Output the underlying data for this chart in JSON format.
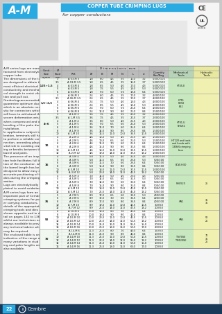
{
  "title": "COPPER TUBE CRIMPING LUGS",
  "subtitle": "for copper conductors",
  "brand": "A-M",
  "page_number": "22",
  "footer_brand": "Cembre",
  "left_text": [
    "A-M series lugs are manu-",
    "factured from electrolytic",
    "copper tube.",
    "The dimensions of the tube",
    "are designed to obtain the",
    "most efficient electrical",
    "conductivity and mechani-",
    "cal strength to resist vibra-",
    "tion and pull out.",
    "Cembrelugsareannealedto",
    "guarantee optimum ductility",
    "which is an absolute neces-",
    "sity for connectors which",
    "will have to withstand the",
    "severe deformation arising",
    "when compressed and any",
    "bending of the palm during",
    "installation.",
    "In applications subject to vi-",
    "bration, terminals still have",
    "to perform a reliable con-",
    "nection, annealing plays a",
    "vital role in avoiding crack-",
    "ing or breaks between the",
    "barrel and palm.",
    "The presence of an inspec-",
    "tion hole facilitates full inser-",
    "tion of the conductor, whilst",
    "the barrel length has been",
    "designed to allow easy and",
    "accurate positioning of the",
    "dies during the crimping op-",
    "eration.",
    "Lugs are electrolytically tin-",
    "plated to avoid oxidation.",
    "A-M series lugs form an",
    "important part of Cembre",
    "crimping systems for pow-",
    "er carrying conductors,",
    "details of the appropriate",
    "crimping tools and dies are",
    "shown opposite and in de-",
    "tail on pages 132 to 136,",
    "whilst our technicians are",
    "always available to provide",
    "any technical advice which",
    "may be required.",
    "The enclosed table is only",
    "indicative of the range and",
    "many variations in stud fix-",
    "ing and palm lengths are",
    "also available."
  ],
  "cond_groups": [
    {
      "cond": "0,25÷1,5",
      "rows": [
        {
          "stud": "3",
          "ref": "A 03-M 3",
          "oi": "1,8",
          "B": "6,0",
          "M": "4,5",
          "N": "3,5",
          "L": "16,0",
          "d": "3,2",
          "qty": "5.000/100"
        },
        {
          "stud": "3,5",
          "ref": "A 03-M 3,5",
          "oi": "1,8",
          "B": "6,5",
          "M": "4,5",
          "N": "3,5",
          "L": "16,0",
          "d": "3,7",
          "qty": "5.000/100"
        },
        {
          "stud": "4",
          "ref": "A 03-M 4",
          "oi": "1,8",
          "B": "6,5",
          "M": "5,0",
          "N": "4,0",
          "L": "17,0",
          "d": "4,3",
          "qty": "5.000/100"
        },
        {
          "stud": "5",
          "ref": "A 03-M 5",
          "oi": "1,8",
          "B": "7,5",
          "M": "5,5",
          "N": "4,5",
          "L": "18,0",
          "d": "5,3",
          "qty": "5.000/100"
        },
        {
          "stud": "6",
          "ref": "A 03-M 6",
          "oi": "1,8",
          "B": "9,0",
          "M": "6,0",
          "N": "5,0",
          "L": "19,0",
          "d": "6,4",
          "qty": "5.000/100"
        }
      ]
    },
    {
      "cond": "1,5÷2,5",
      "rows": [
        {
          "stud": "3",
          "ref": "A 06-M 3",
          "oi": "2,4",
          "B": "6,0",
          "M": "4,5",
          "N": "3,5",
          "L": "17,0",
          "d": "3,2",
          "qty": "4.000/100"
        },
        {
          "stud": "3,5",
          "ref": "A 06-M 3,5",
          "oi": "2,4",
          "B": "6,5",
          "M": "4,5",
          "N": "3,5",
          "L": "17,0",
          "d": "3,7",
          "qty": "4.000/100"
        },
        {
          "stud": "4",
          "ref": "A 06-M 4",
          "oi": "2,4",
          "B": "7,5",
          "M": "5,0",
          "N": "4,0",
          "L": "18,0",
          "d": "4,3",
          "qty": "4.000/100"
        },
        {
          "stud": "5",
          "ref": "A 06-M 5",
          "oi": "2,4",
          "B": "8,5",
          "M": "5,5",
          "N": "4,5",
          "L": "19,0",
          "d": "5,3",
          "qty": "4.000/100"
        },
        {
          "stud": "6",
          "ref": "A 06-M 6",
          "oi": "2,4",
          "B": "9,0",
          "M": "6,0",
          "N": "5,0",
          "L": "20,0",
          "d": "6,4",
          "qty": "4.000/100"
        },
        {
          "stud": "8",
          "ref": "A 06-M 8",
          "oi": "2,4",
          "B": "12,0",
          "M": "9,0",
          "N": "8,0",
          "L": "26,0",
          "d": "8,4",
          "qty": "2.500/100"
        }
      ]
    },
    {
      "cond": "4÷6",
      "rows": [
        {
          "stud": "3",
          "ref": "A 1-M 3",
          "oi": "3,6",
          "B": "7,5",
          "M": "4,5",
          "N": "3,5",
          "L": "20,5",
          "d": "3,2",
          "qty": "2.000/100"
        },
        {
          "stud": "3,5",
          "ref": "A 1-M 3,5",
          "oi": "3,6",
          "B": "7,5",
          "M": "4,5",
          "N": "3,5",
          "L": "20,5",
          "d": "3,7",
          "qty": "2.000/100"
        },
        {
          "stud": "4",
          "ref": "A 1-M 4",
          "oi": "3,6",
          "B": "8,0",
          "M": "5,0",
          "N": "4,0",
          "L": "21,5",
          "d": "4,3",
          "qty": "2.000/100"
        },
        {
          "stud": "5",
          "ref": "A 1-M 5",
          "oi": "3,6",
          "B": "9,0",
          "M": "6,5",
          "N": "6,0",
          "L": "25,0",
          "d": "5,3",
          "qty": "2.000/100"
        },
        {
          "stud": "6",
          "ref": "A 1-M 6",
          "oi": "3,6",
          "B": "11,0",
          "M": "7,0",
          "N": "6,0",
          "L": "25,5",
          "d": "6,4",
          "qty": "2.000/100"
        },
        {
          "stud": "8",
          "ref": "A 1-M 8",
          "oi": "3,6",
          "B": "14,0",
          "M": "9,0",
          "N": "8,0",
          "L": "29,5",
          "d": "8,4",
          "qty": "1.500/100"
        },
        {
          "stud": "10",
          "ref": "A 1-M 10",
          "oi": "3,6",
          "B": "16,5",
          "M": "11,0",
          "N": "10,0",
          "L": "33,5",
          "d": "10,5",
          "qty": "1.000/100"
        }
      ]
    },
    {
      "cond": "10",
      "rows": [
        {
          "stud": "4",
          "ref": "A 2-M 4",
          "oi": "4,6",
          "B": "10,0",
          "M": "5,0",
          "N": "4,0",
          "L": "22,5",
          "d": "4,3",
          "qty": "1.500/100"
        },
        {
          "stud": "5",
          "ref": "A 2-M 5",
          "oi": "4,6",
          "B": "10,0",
          "M": "6,5",
          "N": "6,0",
          "L": "26,0",
          "d": "5,3",
          "qty": "1.500/100"
        },
        {
          "stud": "6",
          "ref": "A 2-M 6",
          "oi": "4,6",
          "B": "11,0",
          "M": "7,0",
          "N": "6,0",
          "L": "26,5",
          "d": "6,4",
          "qty": "1.500/100"
        },
        {
          "stud": "8",
          "ref": "A 2-M 8",
          "oi": "4,6",
          "B": "15,0",
          "M": "9,0",
          "N": "8,0",
          "L": "30,5",
          "d": "8,4",
          "qty": "1.000/100"
        },
        {
          "stud": "10",
          "ref": "A 2-M 10",
          "oi": "4,6",
          "B": "18,0",
          "M": "11,0",
          "N": "10,0",
          "L": "34,5",
          "d": "10,5",
          "qty": "1.000/100"
        },
        {
          "stud": "12",
          "ref": "A 2-M 12",
          "oi": "4,6",
          "B": "19,0",
          "M": "14,0",
          "N": "12,0",
          "L": "39,5",
          "d": "13,2",
          "qty": "1.000/100"
        }
      ]
    },
    {
      "cond": "16",
      "rows": [
        {
          "stud": "4",
          "ref": "A 3-M 4",
          "oi": "5,8",
          "B": "11,5",
          "M": "5,0",
          "N": "4,0",
          "L": "25,5",
          "d": "4,3",
          "qty": "1.000/100"
        },
        {
          "stud": "5",
          "ref": "A 3-M 5",
          "oi": "5,8",
          "B": "11,5",
          "M": "6,5",
          "N": "6,0",
          "L": "29,0",
          "d": "5,3",
          "qty": "500/100"
        },
        {
          "stud": "6",
          "ref": "A 3-M 6",
          "oi": "5,8",
          "B": "11,5",
          "M": "7,0",
          "N": "6,0",
          "L": "29,5",
          "d": "6,4",
          "qty": "500/100"
        },
        {
          "stud": "8",
          "ref": "A 3-M 8",
          "oi": "5,8",
          "B": "15,0",
          "M": "9,0",
          "N": "8,0",
          "L": "33,5",
          "d": "8,4",
          "qty": "500/100"
        },
        {
          "stud": "10",
          "ref": "A 3-M 10",
          "oi": "5,8",
          "B": "18,0",
          "M": "11,0",
          "N": "10,0",
          "L": "37,5",
          "d": "10,5",
          "qty": "1.000/100"
        },
        {
          "stud": "12",
          "ref": "A 3-M 12",
          "oi": "5,8",
          "B": "20,0",
          "M": "14,0",
          "N": "12,0",
          "L": "42,5",
          "d": "13,2",
          "qty": "500/100"
        }
      ]
    },
    {
      "cond": "25",
      "rows": [
        {
          "stud": "4",
          "ref": "A 5-M 4",
          "oi": "7,0",
          "B": "14,0",
          "M": "5,0",
          "N": "4,0",
          "L": "28,0",
          "d": "4,3",
          "qty": "500/100"
        },
        {
          "stud": "5",
          "ref": "A 5-M 5",
          "oi": "7,0",
          "B": "14,0",
          "M": "6,5",
          "N": "6,0",
          "L": "31,5",
          "d": "5,3",
          "qty": "500/100"
        },
        {
          "stud": "6",
          "ref": "A 5-M 6",
          "oi": "7,0",
          "B": "14,0",
          "M": "7,0",
          "N": "6,0",
          "L": "32,0",
          "d": "6,4",
          "qty": "500/100"
        },
        {
          "stud": "8",
          "ref": "A 5-M 8",
          "oi": "7,0",
          "B": "15,0",
          "M": "9,0",
          "N": "8,0",
          "L": "36,0",
          "d": "8,4",
          "qty": "500/100"
        },
        {
          "stud": "10",
          "ref": "A 5-M 10",
          "oi": "7,0",
          "B": "18,0",
          "M": "11,0",
          "N": "10,0",
          "L": "40,0",
          "d": "10,5",
          "qty": "500/100"
        },
        {
          "stud": "12",
          "ref": "A 5-M 12",
          "oi": "7,0",
          "B": "21,0",
          "M": "14,0",
          "N": "12,0",
          "L": "45,0",
          "d": "13,2",
          "qty": "500/100"
        }
      ]
    },
    {
      "cond": "35",
      "rows": [
        {
          "stud": "5",
          "ref": "A 7-M 5",
          "oi": "8,9",
          "B": "17,0",
          "M": "6,5",
          "N": "6,0",
          "L": "34,0",
          "d": "5,3",
          "qty": "400/100"
        },
        {
          "stud": "6",
          "ref": "A 7-M 6",
          "oi": "8,9",
          "B": "17,0",
          "M": "7,0",
          "N": "6,0",
          "L": "34,5",
          "d": "6,4",
          "qty": "400/100"
        },
        {
          "stud": "8",
          "ref": "A 7-M 8",
          "oi": "8,9",
          "B": "17,0",
          "M": "9,0",
          "N": "8,0",
          "L": "38,5",
          "d": "8,4",
          "qty": "400/100"
        },
        {
          "stud": "10",
          "ref": "A 7-M 10",
          "oi": "8,9",
          "B": "19,0",
          "M": "11,0",
          "N": "10,0",
          "L": "42,5",
          "d": "10,5",
          "qty": "300/50"
        },
        {
          "stud": "12",
          "ref": "A 7-M 12",
          "oi": "8,9",
          "B": "21,0",
          "M": "14,0",
          "N": "12,0",
          "L": "47,5",
          "d": "13,2",
          "qty": "200/50"
        }
      ]
    },
    {
      "cond": "50",
      "rows": [
        {
          "stud": "6",
          "ref": "A 10-M 6",
          "oi": "10,0",
          "B": "19,0",
          "M": "8,0",
          "N": "7,0",
          "L": "40,5",
          "d": "6,4",
          "qty": "200/50"
        },
        {
          "stud": "8",
          "ref": "A 10-M 8",
          "oi": "10,0",
          "B": "19,0",
          "M": "9,0",
          "N": "8,0",
          "L": "42,5",
          "d": "8,4",
          "qty": "200/50"
        },
        {
          "stud": "10",
          "ref": "A 10-M 10",
          "oi": "10,0",
          "B": "20,0",
          "M": "11,0",
          "N": "10,0",
          "L": "46,5",
          "d": "10,5",
          "qty": "200/50"
        },
        {
          "stud": "12",
          "ref": "A 10-M 12",
          "oi": "10,0",
          "B": "21,0",
          "M": "14,0",
          "N": "12,0",
          "L": "51,5",
          "d": "13,2",
          "qty": "200/50"
        },
        {
          "stud": "14",
          "ref": "A 10-M 14",
          "oi": "10,0",
          "B": "25,0",
          "M": "16,0",
          "N": "14,0",
          "L": "55,5",
          "d": "15,0",
          "qty": "200/50"
        },
        {
          "stud": "16",
          "ref": "A 10-M 16",
          "oi": "10,0",
          "B": "26,0",
          "M": "18,0",
          "N": "16,0",
          "L": "59,5",
          "d": "17,0",
          "qty": "200/50"
        }
      ]
    },
    {
      "cond": "70",
      "rows": [
        {
          "stud": "6",
          "ref": "A 14-M 6",
          "oi": "11,3",
          "B": "21,0",
          "M": "8,0",
          "N": "7,0",
          "L": "44,0",
          "d": "6,4",
          "qty": "150/50"
        },
        {
          "stud": "8",
          "ref": "A 14-M 8",
          "oi": "11,3",
          "B": "21,0",
          "M": "9,0",
          "N": "8,0",
          "L": "46,0",
          "d": "8,4",
          "qty": "100/50"
        },
        {
          "stud": "10",
          "ref": "A 14-M 10",
          "oi": "11,3",
          "B": "21,0",
          "M": "11,0",
          "N": "10,0",
          "L": "50,0",
          "d": "10,5",
          "qty": "100/50"
        },
        {
          "stud": "12",
          "ref": "A 14-M 12",
          "oi": "11,3",
          "B": "22,0",
          "M": "14,0",
          "N": "12,0",
          "L": "55,0",
          "d": "13,2",
          "qty": "100/50"
        },
        {
          "stud": "14",
          "ref": "A 14-M 14",
          "oi": "11,3",
          "B": "25,0",
          "M": "16,0",
          "N": "14,0",
          "L": "59,0",
          "d": "15,0",
          "qty": "100/50"
        },
        {
          "stud": "16",
          "ref": "A 14-M 16",
          "oi": "11,3",
          "B": "26,0",
          "M": "18,0",
          "N": "16,0",
          "L": "63,0",
          "d": "17,0",
          "qty": "100/50"
        }
      ]
    }
  ],
  "mech_tools": [
    "HT45-E",
    "HT51\nRH50\nB51",
    "HT81-U\nRHU81",
    "HT120 and tools\nand heads with\n130kN crimping\nforce",
    "ECW-H3D",
    "RHU520",
    "HN1",
    "HN5",
    "TN70SE\nTN120SE"
  ],
  "hyd_tools": [
    "",
    "",
    "",
    "",
    "",
    "25",
    "35\n35",
    "50\n25",
    "70\n35\n25"
  ]
}
